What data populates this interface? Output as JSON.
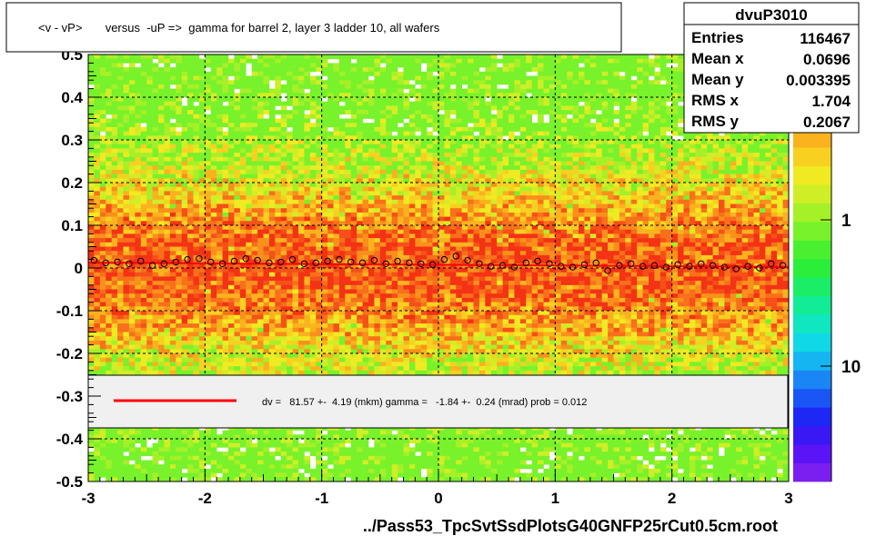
{
  "chart_data": {
    "type": "heatmap",
    "title": "<v - vP>       versus  -uP =>  gamma for barrel 2, layer 3 ladder 10, all wafers",
    "xlabel": "../Pass53_TpcSvtSsdPlotsG40GNFP25rCut0.5cm.root",
    "ylabel": "",
    "xlim": [
      -3,
      3
    ],
    "ylim": [
      -0.5,
      0.5
    ],
    "x_ticks": [
      "-3",
      "-2",
      "-1",
      "0",
      "1",
      "2",
      "3"
    ],
    "y_ticks": [
      "-0.5",
      "-0.4",
      "-0.3",
      "-0.2",
      "-0.1",
      "0",
      "0.1",
      "0.2",
      "0.3",
      "0.4",
      "0.5"
    ],
    "colorbar_ticks": [
      "1",
      "10"
    ],
    "grid": true,
    "stats": {
      "name": "dvuP3010",
      "rows": [
        {
          "label": "Entries",
          "value": "116467"
        },
        {
          "label": "Mean x",
          "value": "0.0696"
        },
        {
          "label": "Mean y",
          "value": "0.003395"
        },
        {
          "label": "RMS x",
          "value": "1.704"
        },
        {
          "label": "RMS y",
          "value": "0.2067"
        }
      ]
    },
    "fit_legend": "dv =   81.57 +-  4.19 (mkm) gamma =   -1.84 +-  0.24 (mrad) prob = 0.012",
    "fit_line": {
      "x": [
        -3,
        3
      ],
      "y": [
        0.0125,
        0.0025
      ],
      "color": "#ff0000"
    },
    "profile_points": {
      "x": [
        -2.95,
        -2.85,
        -2.75,
        -2.65,
        -2.55,
        -2.45,
        -2.35,
        -2.25,
        -2.15,
        -2.05,
        -1.95,
        -1.85,
        -1.75,
        -1.65,
        -1.55,
        -1.45,
        -1.35,
        -1.25,
        -1.15,
        -1.05,
        -0.95,
        -0.85,
        -0.75,
        -0.65,
        -0.55,
        -0.45,
        -0.35,
        -0.25,
        -0.15,
        -0.05,
        0.05,
        0.15,
        0.25,
        0.35,
        0.45,
        0.55,
        0.65,
        0.75,
        0.85,
        0.95,
        1.05,
        1.15,
        1.25,
        1.35,
        1.45,
        1.55,
        1.65,
        1.75,
        1.85,
        1.95,
        2.05,
        2.15,
        2.25,
        2.35,
        2.45,
        2.55,
        2.65,
        2.75,
        2.85,
        2.95
      ],
      "y": [
        0.018,
        0.012,
        0.014,
        0.01,
        0.016,
        0.006,
        0.01,
        0.014,
        0.02,
        0.022,
        0.014,
        0.01,
        0.016,
        0.022,
        0.018,
        0.012,
        0.014,
        0.02,
        0.01,
        0.012,
        0.016,
        0.02,
        0.014,
        0.012,
        0.018,
        0.01,
        0.016,
        0.012,
        0.01,
        0.008,
        0.02,
        0.028,
        0.018,
        0.01,
        0.004,
        0.006,
        0.002,
        0.012,
        0.016,
        0.01,
        0.004,
        0.002,
        0.008,
        0.012,
        -0.006,
        0.006,
        0.01,
        0.004,
        0.006,
        0.002,
        0.008,
        0.004,
        0.01,
        0.006,
        0.002,
        -0.002,
        0.004,
        0.0,
        0.01,
        0.006
      ]
    },
    "colors": {
      "background": "#ffffff",
      "legend_fill": "#f0f0f0",
      "fit_line": "#ff0000",
      "palette": [
        "#7a1ff0",
        "#5a14f5",
        "#3a18f5",
        "#1e28f5",
        "#1a55f5",
        "#1a85f5",
        "#14b5f0",
        "#10d8e6",
        "#10e6c0",
        "#12ec96",
        "#1aee66",
        "#2aee3a",
        "#4af030",
        "#78f22a",
        "#a6f028",
        "#d0ee26",
        "#f0ea22",
        "#f8d020",
        "#fab21e",
        "#fa901c",
        "#f8701a",
        "#f65018",
        "#f43214"
      ]
    }
  }
}
